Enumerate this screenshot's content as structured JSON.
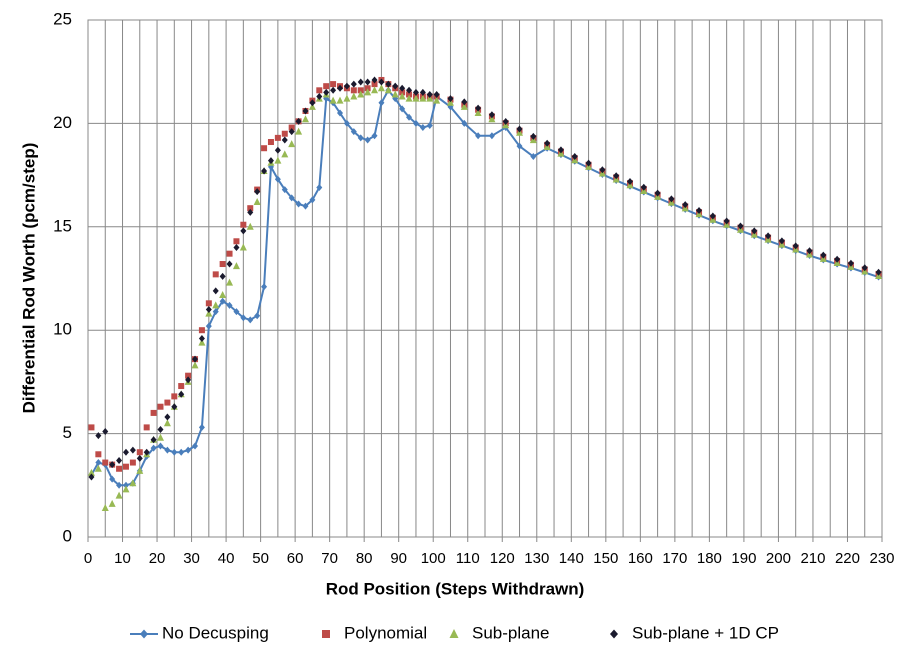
{
  "chart_data": {
    "type": "scatter",
    "x_label": "Rod Position  (Steps Withdrawn)",
    "y_label": "Differential Rod Worth  (pcm/step)",
    "x": [
      1,
      3,
      5,
      7,
      9,
      11,
      13,
      15,
      17,
      19,
      21,
      23,
      25,
      27,
      29,
      31,
      33,
      35,
      37,
      39,
      41,
      43,
      45,
      47,
      49,
      51,
      53,
      55,
      57,
      59,
      61,
      63,
      65,
      67,
      69,
      71,
      73,
      75,
      77,
      79,
      81,
      83,
      85,
      87,
      89,
      91,
      93,
      95,
      97,
      99,
      101,
      105,
      109,
      113,
      117,
      121,
      125,
      129,
      133,
      137,
      141,
      145,
      149,
      153,
      157,
      161,
      165,
      169,
      173,
      177,
      181,
      185,
      189,
      193,
      197,
      201,
      205,
      209,
      213,
      217,
      221,
      225,
      229
    ],
    "series": [
      {
        "name": "No Decusping",
        "color": "#4a7ebb",
        "marker": "diamond",
        "line": true,
        "values": [
          3.0,
          3.6,
          3.5,
          2.8,
          2.5,
          2.5,
          2.6,
          3.2,
          3.9,
          4.3,
          4.4,
          4.2,
          4.1,
          4.1,
          4.2,
          4.4,
          5.3,
          10.2,
          10.9,
          11.4,
          11.2,
          10.9,
          10.6,
          10.5,
          10.7,
          12.1,
          17.9,
          17.3,
          16.8,
          16.4,
          16.1,
          16.0,
          16.3,
          16.9,
          21.2,
          21.0,
          20.5,
          20.0,
          19.6,
          19.3,
          19.2,
          19.4,
          21.0,
          21.6,
          21.2,
          20.7,
          20.3,
          20.0,
          19.8,
          19.9,
          21.3,
          20.8,
          20.0,
          19.4,
          19.4,
          19.8,
          18.9,
          18.4,
          18.8,
          18.49,
          18.17,
          17.85,
          17.53,
          17.24,
          16.96,
          16.68,
          16.4,
          16.12,
          15.84,
          15.56,
          15.29,
          15.05,
          14.81,
          14.57,
          14.33,
          14.09,
          13.85,
          13.61,
          13.4,
          13.2,
          13.01,
          12.79,
          12.57
        ]
      },
      {
        "name": "Polynomial",
        "color": "#be4b48",
        "marker": "square",
        "line": false,
        "values": [
          5.3,
          4.0,
          3.6,
          3.5,
          3.3,
          3.4,
          3.6,
          4.1,
          5.3,
          6.0,
          6.3,
          6.5,
          6.8,
          7.3,
          7.8,
          8.6,
          10.0,
          11.3,
          12.7,
          13.2,
          13.7,
          14.3,
          15.1,
          15.9,
          16.8,
          18.8,
          19.1,
          19.3,
          19.5,
          19.8,
          20.1,
          20.6,
          21.1,
          21.6,
          21.8,
          21.9,
          21.8,
          21.7,
          21.6,
          21.6,
          21.7,
          21.9,
          22.1,
          21.9,
          21.7,
          21.5,
          21.4,
          21.3,
          21.3,
          21.3,
          21.3,
          21.15,
          20.9,
          20.66,
          20.34,
          20.01,
          19.65,
          19.29,
          18.96,
          18.64,
          18.32,
          18.0,
          17.68,
          17.39,
          17.11,
          16.83,
          16.55,
          16.27,
          15.99,
          15.71,
          15.44,
          15.2,
          14.96,
          14.72,
          14.48,
          14.24,
          14.0,
          13.76,
          13.55,
          13.35,
          13.16,
          12.94,
          12.72
        ]
      },
      {
        "name": "Sub-plane",
        "color": "#98b954",
        "marker": "triangle",
        "line": false,
        "values": [
          3.1,
          3.3,
          1.4,
          1.6,
          2.0,
          2.3,
          2.6,
          3.2,
          4.0,
          4.7,
          4.8,
          5.5,
          6.3,
          6.9,
          7.5,
          8.3,
          9.4,
          10.8,
          11.2,
          11.7,
          12.3,
          13.1,
          14.0,
          15.0,
          16.2,
          17.7,
          18.1,
          18.2,
          18.5,
          19.0,
          19.6,
          20.2,
          20.8,
          21.2,
          21.4,
          21.1,
          21.1,
          21.2,
          21.3,
          21.4,
          21.5,
          21.6,
          21.7,
          21.6,
          21.4,
          21.3,
          21.2,
          21.2,
          21.2,
          21.2,
          21.1,
          21.0,
          20.8,
          20.5,
          20.2,
          19.91,
          19.55,
          19.19,
          18.86,
          18.54,
          18.22,
          17.9,
          17.58,
          17.29,
          17.01,
          16.73,
          16.45,
          16.17,
          15.89,
          15.61,
          15.34,
          15.1,
          14.86,
          14.62,
          14.38,
          14.14,
          13.9,
          13.66,
          13.45,
          13.25,
          13.06,
          12.84,
          12.62
        ]
      },
      {
        "name": "Sub-plane + 1D CP",
        "color": "#1a1a2e",
        "marker": "diamond",
        "line": false,
        "values": [
          2.9,
          4.9,
          5.1,
          3.5,
          3.7,
          4.1,
          4.2,
          3.8,
          4.1,
          4.7,
          5.2,
          5.8,
          6.3,
          6.9,
          7.6,
          8.6,
          9.6,
          11.0,
          11.9,
          12.6,
          13.2,
          14.0,
          14.8,
          15.7,
          16.7,
          17.7,
          18.2,
          18.7,
          19.2,
          19.6,
          20.1,
          20.6,
          21.0,
          21.3,
          21.5,
          21.6,
          21.7,
          21.8,
          21.9,
          22.0,
          22.0,
          22.1,
          22.0,
          21.9,
          21.8,
          21.7,
          21.6,
          21.5,
          21.5,
          21.4,
          21.4,
          21.2,
          21.04,
          20.74,
          20.42,
          20.09,
          19.73,
          19.37,
          19.04,
          18.72,
          18.4,
          18.08,
          17.76,
          17.47,
          17.19,
          16.91,
          16.63,
          16.35,
          16.07,
          15.79,
          15.52,
          15.28,
          15.04,
          14.8,
          14.56,
          14.32,
          14.08,
          13.84,
          13.63,
          13.43,
          13.24,
          13.02,
          12.8
        ]
      }
    ],
    "xlim": [
      0,
      230
    ],
    "ylim": [
      0,
      25
    ],
    "xticks": [
      0,
      10,
      20,
      30,
      40,
      50,
      60,
      70,
      80,
      90,
      100,
      110,
      120,
      130,
      140,
      150,
      160,
      170,
      180,
      190,
      200,
      210,
      220,
      230
    ],
    "xgrid": [
      0,
      5,
      10,
      15,
      20,
      25,
      30,
      35,
      40,
      45,
      50,
      55,
      60,
      65,
      70,
      75,
      80,
      85,
      90,
      95,
      100,
      105,
      110,
      115,
      120,
      125,
      130,
      135,
      140,
      145,
      150,
      155,
      160,
      165,
      170,
      175,
      180,
      185,
      190,
      195,
      200,
      205,
      210,
      215,
      220,
      225,
      230
    ],
    "yticks": [
      0,
      5,
      10,
      15,
      20,
      25
    ],
    "grid": true,
    "legend": "bottom"
  }
}
